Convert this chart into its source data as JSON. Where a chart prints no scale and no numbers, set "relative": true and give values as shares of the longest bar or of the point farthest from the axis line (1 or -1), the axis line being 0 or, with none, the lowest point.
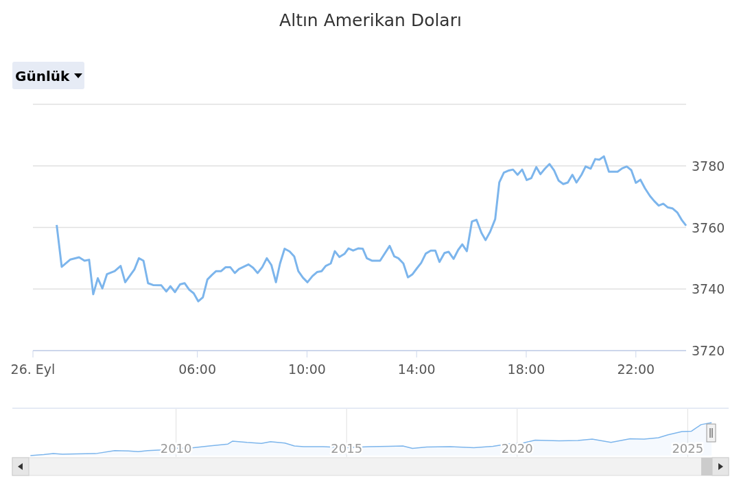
{
  "chart_data": [
    {
      "type": "line",
      "title": "Altın Amerikan Doları",
      "annotations": [
        "Günlük"
      ],
      "x": [
        "2025-09-26T00:52",
        "2025-09-26T01:03",
        "2025-09-26T01:22",
        "2025-09-26T01:41",
        "2025-09-26T01:53",
        "2025-09-26T02:03",
        "2025-09-26T02:12",
        "2025-09-26T02:22",
        "2025-09-26T02:32",
        "2025-09-26T02:42",
        "2025-09-26T02:59",
        "2025-09-26T03:12",
        "2025-09-26T03:22",
        "2025-09-26T03:42",
        "2025-09-26T03:52",
        "2025-09-26T04:02",
        "2025-09-26T04:12",
        "2025-09-26T04:23",
        "2025-09-26T04:41",
        "2025-09-26T04:52",
        "2025-09-26T05:01",
        "2025-09-26T05:11",
        "2025-09-26T05:22",
        "2025-09-26T05:32",
        "2025-09-26T05:42",
        "2025-09-26T05:52",
        "2025-09-26T06:02",
        "2025-09-26T06:12",
        "2025-09-26T06:22",
        "2025-09-26T06:32",
        "2025-09-26T06:41",
        "2025-09-26T06:52",
        "2025-09-26T07:02",
        "2025-09-26T07:12",
        "2025-09-26T07:22",
        "2025-09-26T07:31",
        "2025-09-26T07:52",
        "2025-09-26T08:02",
        "2025-09-26T08:12",
        "2025-09-26T08:22",
        "2025-09-26T08:32",
        "2025-09-26T08:42",
        "2025-09-26T08:52",
        "2025-09-26T09:01",
        "2025-09-26T09:11",
        "2025-09-26T09:22",
        "2025-09-26T09:32",
        "2025-09-26T09:41",
        "2025-09-26T09:51",
        "2025-09-26T10:01",
        "2025-09-26T10:12",
        "2025-09-26T10:22",
        "2025-09-26T10:32",
        "2025-09-26T10:41",
        "2025-09-26T10:52",
        "2025-09-26T11:01",
        "2025-09-26T11:11",
        "2025-09-26T11:22",
        "2025-09-26T11:31",
        "2025-09-26T11:41",
        "2025-09-26T11:52",
        "2025-09-26T12:02",
        "2025-09-26T12:11",
        "2025-09-26T12:22",
        "2025-09-26T12:40",
        "2025-09-26T13:01",
        "2025-09-26T13:11",
        "2025-09-26T13:20",
        "2025-09-26T13:31",
        "2025-09-26T13:41",
        "2025-09-26T13:51",
        "2025-09-26T14:01",
        "2025-09-26T14:10",
        "2025-09-26T14:20",
        "2025-09-26T14:31",
        "2025-09-26T14:41",
        "2025-09-26T14:50",
        "2025-09-26T15:01",
        "2025-09-26T15:10",
        "2025-09-26T15:21",
        "2025-09-26T15:31",
        "2025-09-26T15:40",
        "2025-09-26T15:50",
        "2025-09-26T16:01",
        "2025-09-26T16:11",
        "2025-09-26T16:22",
        "2025-09-26T16:31",
        "2025-09-26T16:41",
        "2025-09-26T16:52",
        "2025-09-26T17:01",
        "2025-09-26T17:11",
        "2025-09-26T17:22",
        "2025-09-26T17:31",
        "2025-09-26T17:41",
        "2025-09-26T17:51",
        "2025-09-26T18:01",
        "2025-09-26T18:11",
        "2025-09-26T18:22",
        "2025-09-26T18:31",
        "2025-09-26T18:41",
        "2025-09-26T18:51",
        "2025-09-26T19:01",
        "2025-09-26T19:11",
        "2025-09-26T19:21",
        "2025-09-26T19:31",
        "2025-09-26T19:41",
        "2025-09-26T19:50",
        "2025-09-26T20:01",
        "2025-09-26T20:10",
        "2025-09-26T20:21",
        "2025-09-26T20:31",
        "2025-09-26T20:40",
        "2025-09-26T20:50",
        "2025-09-26T21:01",
        "2025-09-26T21:10",
        "2025-09-26T21:20",
        "2025-09-26T21:30",
        "2025-09-26T21:40",
        "2025-09-26T21:50",
        "2025-09-26T22:00",
        "2025-09-26T22:10",
        "2025-09-26T22:20",
        "2025-09-26T22:31",
        "2025-09-26T22:40",
        "2025-09-26T22:50",
        "2025-09-26T23:00",
        "2025-09-26T23:10",
        "2025-09-26T23:20",
        "2025-09-26T23:31",
        "2025-09-26T23:41",
        "2025-09-26T23:50"
      ],
      "series": [
        {
          "color": "#7cb5ec",
          "values": [
            3760.8,
            3747.2,
            3749.6,
            3750.3,
            3749.2,
            3749.5,
            3738.3,
            3743.5,
            3740.2,
            3744.8,
            3745.8,
            3747.5,
            3742.2,
            3746.3,
            3750.0,
            3749.2,
            3741.9,
            3741.3,
            3741.2,
            3739.2,
            3740.9,
            3739.0,
            3741.5,
            3741.9,
            3739.8,
            3738.6,
            3736.0,
            3737.3,
            3743.1,
            3744.6,
            3745.8,
            3745.8,
            3747.1,
            3747.1,
            3745.2,
            3746.5,
            3748.0,
            3746.9,
            3745.2,
            3747.1,
            3750.0,
            3747.8,
            3742.2,
            3748.3,
            3753.1,
            3752.2,
            3750.6,
            3745.8,
            3743.7,
            3742.2,
            3744.2,
            3745.5,
            3745.8,
            3747.5,
            3748.3,
            3752.3,
            3750.4,
            3751.4,
            3753.2,
            3752.5,
            3753.2,
            3753.1,
            3750.0,
            3749.2,
            3749.2,
            3754.0,
            3750.6,
            3750.0,
            3748.3,
            3743.8,
            3744.8,
            3746.8,
            3748.5,
            3751.5,
            3752.5,
            3752.5,
            3748.8,
            3751.7,
            3752.1,
            3749.8,
            3752.7,
            3754.5,
            3752.3,
            3761.9,
            3762.5,
            3758.2,
            3755.9,
            3758.6,
            3762.7,
            3774.6,
            3777.8,
            3778.5,
            3778.8,
            3777.1,
            3778.8,
            3775.4,
            3776.0,
            3779.6,
            3777.3,
            3779.1,
            3780.6,
            3778.5,
            3775.2,
            3774.1,
            3774.6,
            3777.1,
            3774.6,
            3777.1,
            3779.8,
            3779.1,
            3782.2,
            3782.0,
            3783.1,
            3778.1,
            3778.1,
            3778.1,
            3779.2,
            3779.8,
            3778.6,
            3774.5,
            3775.5,
            3772.7,
            3770.2,
            3768.6,
            3767.1,
            3767.7,
            3766.5,
            3766.2,
            3764.8,
            3762.3,
            3760.6
          ]
        }
      ],
      "xlim": [
        "2025-09-26T00:00",
        "2025-09-26T23:50"
      ],
      "xticks": [
        {
          "value": "2025-09-26",
          "label": "26. Eyl"
        },
        {
          "value": "2025-09-26T06:00",
          "label": "06:00"
        },
        {
          "value": "2025-09-26T10:00",
          "label": "10:00"
        },
        {
          "value": "2025-09-26T14:00",
          "label": "14:00"
        },
        {
          "value": "2025-09-26T18:00",
          "label": "18:00"
        },
        {
          "value": "2025-09-26T22:00",
          "label": "22:00"
        }
      ],
      "ylim": [
        3720,
        3800
      ],
      "yticks": [
        3720,
        3740,
        3760,
        3780,
        {
          "value": 3800,
          "label": null
        }
      ],
      "grid": "y",
      "marker": "none",
      "line_style": "solid"
    },
    {
      "type": "area",
      "relative": true,
      "grid": "x",
      "x": [
        2005.73,
        2006.12,
        2006.4,
        2006.67,
        2007.09,
        2007.64,
        2008.2,
        2008.61,
        2008.89,
        2009.17,
        2009.58,
        2009.86,
        2010.42,
        2010.97,
        2011.52,
        2011.66,
        2012.08,
        2012.5,
        2012.77,
        2013.19,
        2013.47,
        2013.74,
        2014.3,
        2014.99,
        2015.68,
        2016.24,
        2016.65,
        2016.93,
        2017.35,
        2018.04,
        2018.73,
        2019.29,
        2019.7,
        2020.12,
        2020.53,
        2021.23,
        2021.78,
        2022.2,
        2022.75,
        2023.31,
        2023.72,
        2024.14,
        2024.42,
        2024.83,
        2025.11,
        2025.39,
        2025.7
      ],
      "series": [
        {
          "color": "#7cb5ec",
          "values": [
            0,
            0.03,
            0.06,
            0.04,
            0.05,
            0.06,
            0.15,
            0.14,
            0.12,
            0.15,
            0.17,
            0.22,
            0.23,
            0.29,
            0.35,
            0.44,
            0.4,
            0.37,
            0.42,
            0.38,
            0.29,
            0.27,
            0.27,
            0.24,
            0.27,
            0.28,
            0.29,
            0.22,
            0.26,
            0.27,
            0.24,
            0.28,
            0.35,
            0.37,
            0.47,
            0.45,
            0.46,
            0.5,
            0.4,
            0.51,
            0.5,
            0.54,
            0.63,
            0.73,
            0.74,
            0.94,
            1
          ]
        }
      ],
      "xlim": [
        2005.2,
        2026.2
      ],
      "xticks": [
        2010,
        2015,
        2020,
        2025
      ]
    }
  ]
}
